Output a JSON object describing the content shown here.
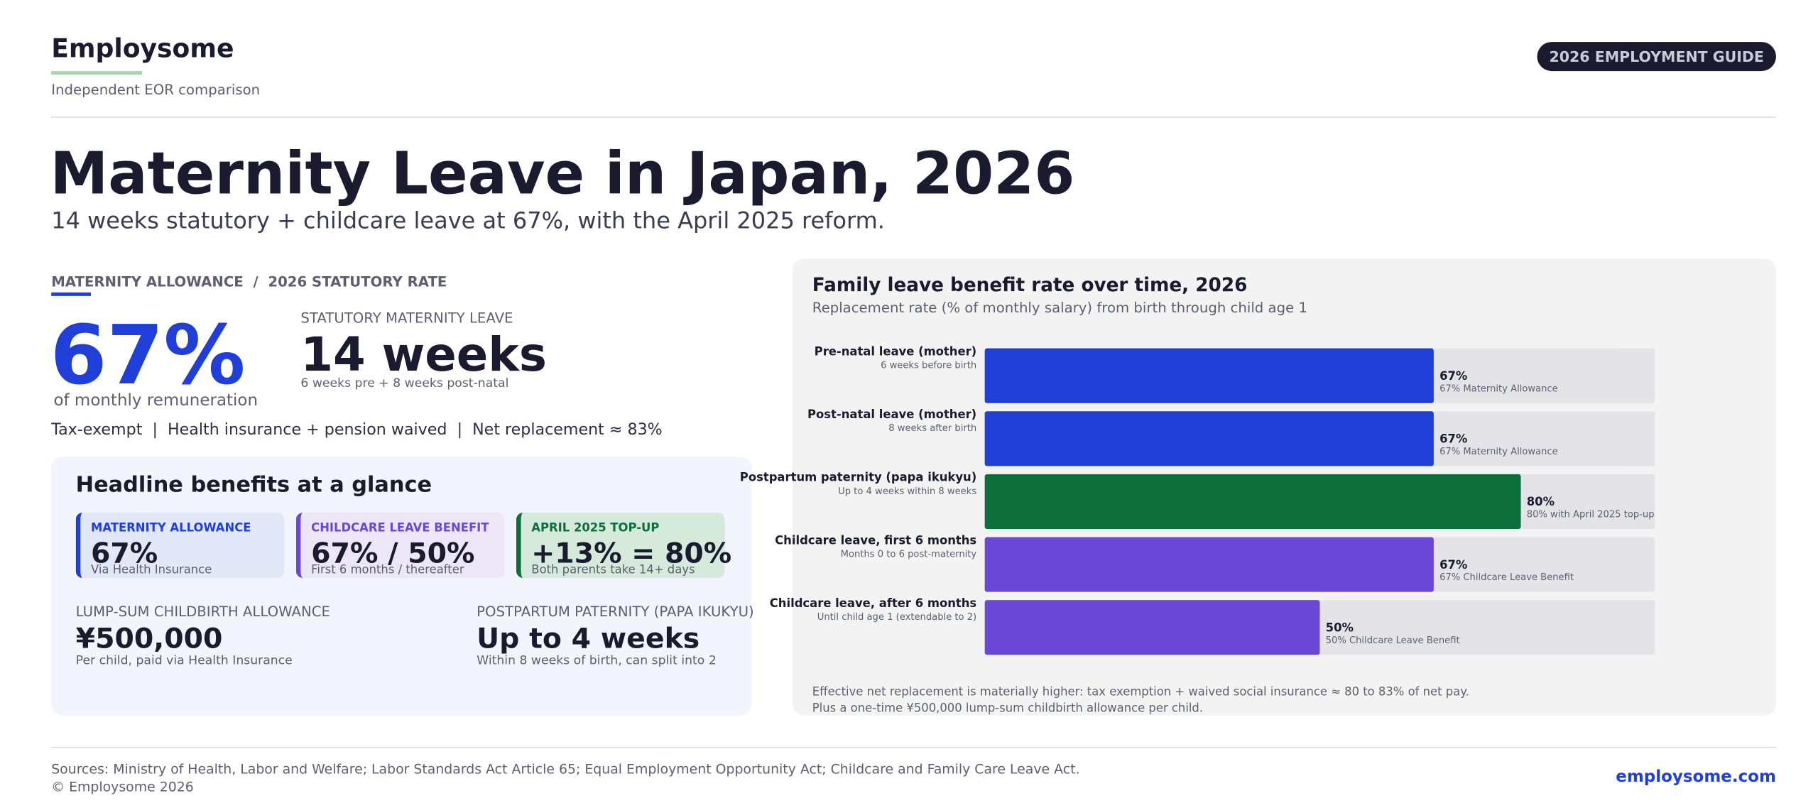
{
  "header": {
    "brand": "Employsome",
    "tagline": "Independent EOR comparison",
    "badge": "2026 EMPLOYMENT GUIDE"
  },
  "hero": {
    "title": "Maternity Leave in Japan, 2026",
    "subtitle": "14 weeks statutory + childcare leave at 67%, with the April 2025 reform."
  },
  "summary": {
    "eyebrow": "MATERNITY ALLOWANCE  /  2026 STATUTORY RATE",
    "rate": "67%",
    "rate_caption": "of monthly remuneration",
    "leave_label": "STATUTORY MATERNITY LEAVE",
    "leave_value": "14 weeks",
    "leave_note": "6 weeks pre + 8 weeks post-natal",
    "facts": "Tax-exempt  |  Health insurance + pension waived  |  Net replacement ≈ 83%"
  },
  "benefits": {
    "title": "Headline benefits at a glance",
    "cards": [
      {
        "label": "MATERNITY ALLOWANCE",
        "value": "67%",
        "note": "Via Health Insurance"
      },
      {
        "label": "CHILDCARE LEAVE BENEFIT",
        "value": "67% / 50%",
        "note": "First 6 months / thereafter"
      },
      {
        "label": "APRIL 2025 TOP-UP",
        "value": "+13% = 80%",
        "note": "Both parents take 14+ days"
      }
    ],
    "details": [
      {
        "label": "LUMP-SUM CHILDBIRTH ALLOWANCE",
        "value": "¥500,000",
        "note": "Per child, paid via Health Insurance"
      },
      {
        "label": "POSTPARTUM PATERNITY (PAPA IKUKYU)",
        "value": "Up to 4 weeks",
        "note": "Within 8 weeks of birth, can split into 2"
      }
    ]
  },
  "chart_data": {
    "type": "bar",
    "orientation": "horizontal",
    "title": "Family leave benefit rate over time, 2026",
    "subtitle": "Replacement rate (% of monthly salary) from birth through child age 1",
    "categories": [
      "Pre-natal leave (mother)",
      "Post-natal leave (mother)",
      "Postpartum paternity (papa ikukyu)",
      "Childcare leave, first 6 months",
      "Childcare leave, after 6 months"
    ],
    "category_notes": [
      "6 weeks before birth",
      "8 weeks after birth",
      "Up to 4 weeks within 8 weeks",
      "Months 0 to 6 post-maternity",
      "Until child age 1 (extendable to 2)"
    ],
    "values": [
      67,
      67,
      80,
      67,
      50
    ],
    "value_labels": [
      "67%",
      "67%",
      "80%",
      "67%",
      "50%"
    ],
    "bar_notes": [
      "67% Maternity Allowance",
      "67% Maternity Allowance",
      "80% with April 2025 top-up",
      "67% Childcare Leave Benefit",
      "50% Childcare Leave Benefit"
    ],
    "colors": [
      "#1f3fd8",
      "#1f3fd8",
      "#0e6e3b",
      "#6b47d6",
      "#6b47d6"
    ],
    "xlim": [
      0,
      100
    ],
    "notes": [
      "Effective net replacement is materially higher: tax exemption + waived social insurance ≈ 80 to 83% of net pay.",
      "Plus a one-time ¥500,000 lump-sum childbirth allowance per child."
    ]
  },
  "footer": {
    "sources": "Sources: Ministry of Health, Labor and Welfare; Labor Standards Act Article 65; Equal Employment Opportunity Act; Childcare and Family Care Leave Act.",
    "copyright": "© Employsome 2026",
    "site": "employsome.com"
  }
}
